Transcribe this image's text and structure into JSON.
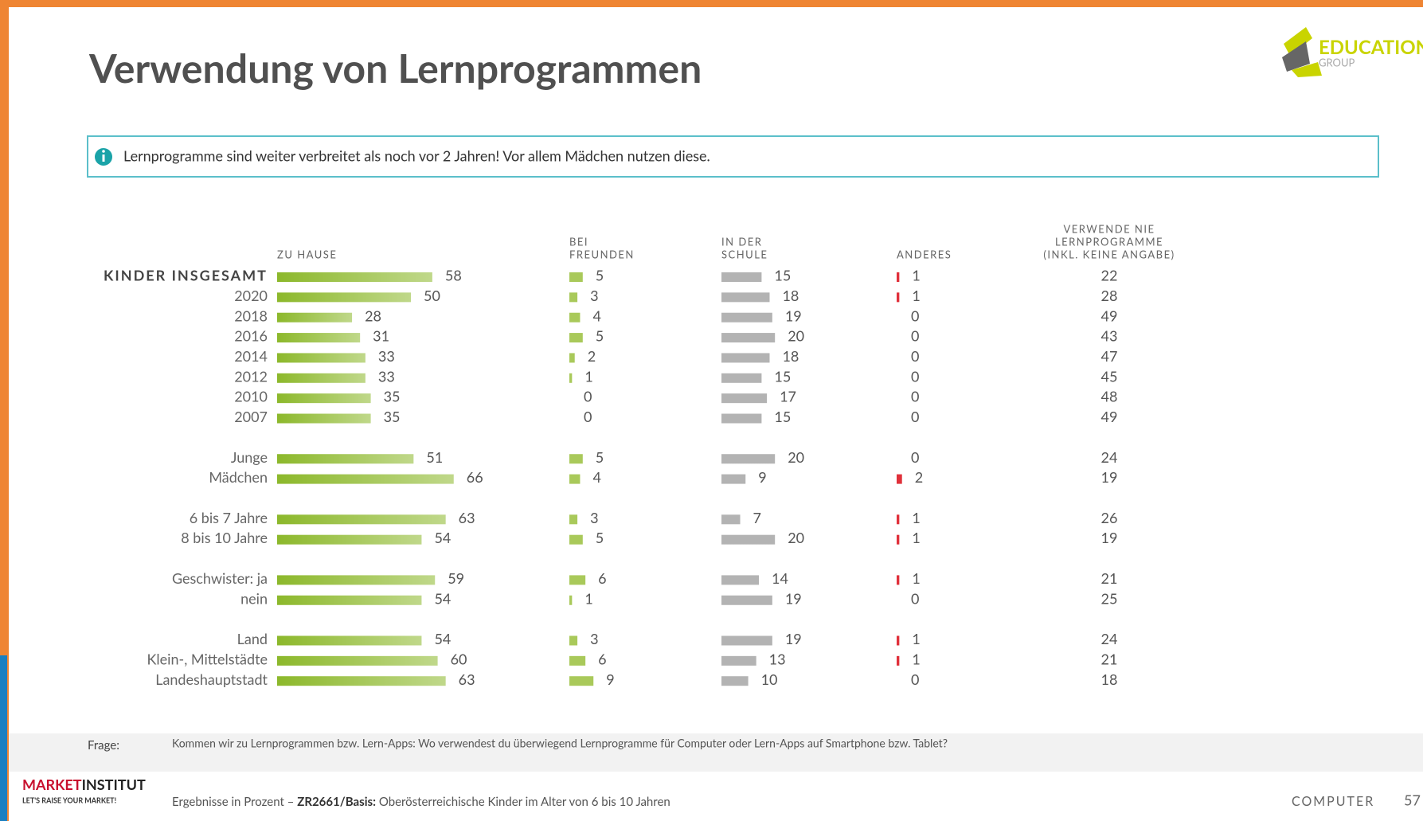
{
  "header": {
    "title": "Verwendung von Lernprogrammen",
    "logo_line1": "EDUCATION",
    "logo_line2": "GROUP",
    "info": "Lernprogramme sind weiter verbreitet als noch vor 2 Jahren! Vor allem Mädchen nutzen diese."
  },
  "chart_data": {
    "type": "bar",
    "categories": [
      "KINDER INSGESAMT",
      "2020",
      "2018",
      "2016",
      "2014",
      "2012",
      "2010",
      "2007",
      "Junge",
      "Mädchen",
      "6 bis 7 Jahre",
      "8 bis 10 Jahre",
      "Geschwister: ja",
      "nein",
      "Land",
      "Klein-, Mittelstädte",
      "Landeshauptstadt"
    ],
    "series": [
      {
        "name": [
          "ZU HAUSE"
        ],
        "color": "#8cb82b",
        "values": [
          58,
          50,
          28,
          31,
          33,
          33,
          35,
          35,
          51,
          66,
          63,
          54,
          59,
          54,
          54,
          60,
          63
        ]
      },
      {
        "name": [
          "BEI",
          "FREUNDEN"
        ],
        "color": "#a9c95a",
        "values": [
          5,
          3,
          4,
          5,
          2,
          1,
          0,
          0,
          5,
          4,
          3,
          5,
          6,
          1,
          3,
          6,
          9
        ]
      },
      {
        "name": [
          "IN DER",
          "SCHULE"
        ],
        "color": "#b3b3b3",
        "values": [
          15,
          18,
          19,
          20,
          18,
          15,
          17,
          15,
          20,
          9,
          7,
          20,
          14,
          19,
          19,
          13,
          10
        ]
      },
      {
        "name": [
          "ANDERES"
        ],
        "color": "#e0303a",
        "values": [
          1,
          1,
          0,
          0,
          0,
          0,
          0,
          0,
          0,
          2,
          1,
          1,
          1,
          0,
          1,
          1,
          0
        ]
      },
      {
        "name": [
          "VERWENDE NIE",
          "LERNPROGRAMME",
          "(INKL. KEINE ANGABE)"
        ],
        "values": [
          22,
          28,
          49,
          43,
          47,
          45,
          48,
          49,
          24,
          19,
          26,
          19,
          21,
          25,
          24,
          21,
          18
        ]
      }
    ]
  },
  "footer": {
    "frage_label": "Frage:",
    "frage": "Kommen wir zu Lernprogrammen bzw. Lern-Apps: Wo verwendest du überwiegend Lernprogramme für Computer oder Lern-Apps auf Smartphone bzw. Tablet?",
    "brand1": "MARKET",
    "brand2": "INSTITUT",
    "tagline": "LET'S RAISE YOUR MARKET!",
    "basis_prefix": "Ergebnisse in Prozent – ",
    "basis_bold": "ZR2661/Basis:",
    "basis_text": " Oberösterreichische Kinder im Alter von 6 bis 10 Jahren",
    "section": "COMPUTER",
    "page": "57"
  }
}
